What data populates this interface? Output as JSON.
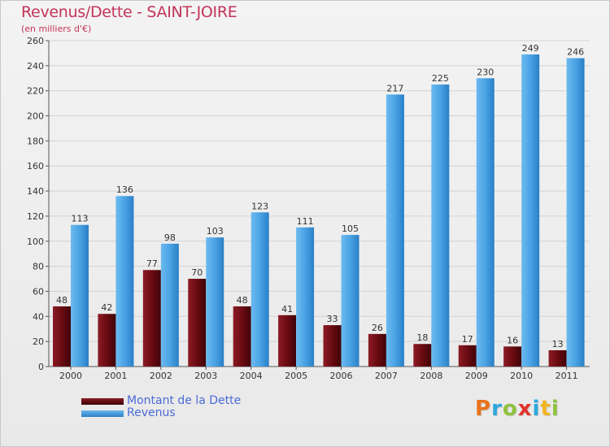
{
  "title": "Revenus/Dette - SAINT-JOIRE",
  "subtitle": "(en milliers d'€)",
  "logo": {
    "text": "Proxiti",
    "letters": [
      "P",
      "r",
      "o",
      "x",
      "i",
      "t",
      "i"
    ],
    "colors": [
      "#e8721c",
      "#2ba8dc",
      "#8fc23d",
      "#e2322b",
      "#2ba8dc",
      "#f2b51e",
      "#8fc23d"
    ]
  },
  "colors": {
    "debt": "#6a0b12",
    "revenue": "#3d97dc",
    "title": "#c4345a",
    "legend_text": "#4b6bd8"
  },
  "chart_data": {
    "type": "bar",
    "title": "Revenus/Dette - SAINT-JOIRE",
    "subtitle": "(en milliers d'€)",
    "categories": [
      "2000",
      "2001",
      "2002",
      "2003",
      "2004",
      "2005",
      "2006",
      "2007",
      "2008",
      "2009",
      "2010",
      "2011"
    ],
    "series": [
      {
        "name": "Montant de la Dette",
        "values": [
          48,
          42,
          77,
          70,
          48,
          41,
          33,
          26,
          18,
          17,
          16,
          13
        ]
      },
      {
        "name": "Revenus",
        "values": [
          113,
          136,
          98,
          103,
          123,
          111,
          105,
          217,
          225,
          230,
          249,
          246
        ]
      }
    ],
    "ylim": [
      0,
      260
    ],
    "yticks": [
      0,
      20,
      40,
      60,
      80,
      100,
      120,
      140,
      160,
      180,
      200,
      220,
      240,
      260
    ],
    "grid": true,
    "legend": "bottom-left"
  }
}
